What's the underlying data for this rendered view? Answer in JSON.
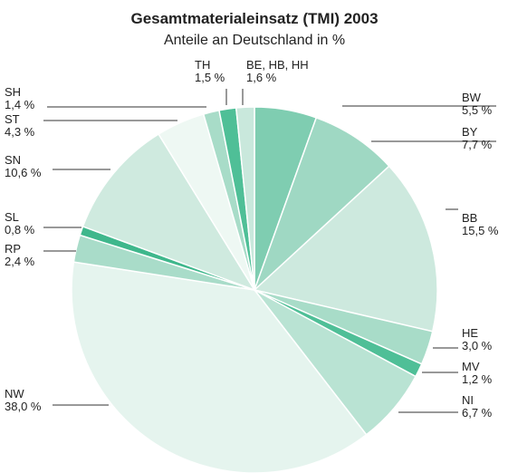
{
  "chart_data": {
    "type": "pie",
    "title": "Gesamtmaterialeinsatz (TMI) 2003",
    "subtitle": "Anteile an Deutschland in %",
    "categories": [
      "BW",
      "BY",
      "BB",
      "HE",
      "MV",
      "NI",
      "NW",
      "RP",
      "SL",
      "SN",
      "ST",
      "SH",
      "TH",
      "BE, HB, HH"
    ],
    "values": [
      5.5,
      7.7,
      15.5,
      3.0,
      1.2,
      6.7,
      38.0,
      2.4,
      0.8,
      10.6,
      4.3,
      1.4,
      1.5,
      1.6
    ],
    "value_labels": [
      "5,5 %",
      "7,7 %",
      "15,5 %",
      "3,0 %",
      "1,2 %",
      "6,7 %",
      "38,0 %",
      "2,4 %",
      "0,8 %",
      "10,6 %",
      "4,3 %",
      "1,4 %",
      "1,5 %",
      "1,6 %"
    ],
    "colors": [
      "#7fcdb1",
      "#9fd8c3",
      "#cde9de",
      "#a8dcc8",
      "#4fbf97",
      "#b9e3d3",
      "#e5f4ee",
      "#a9dcc9",
      "#3fb78c",
      "#cfeadf",
      "#eef8f3",
      "#a8dcc8",
      "#4fbf97",
      "#c9e8dc"
    ]
  }
}
